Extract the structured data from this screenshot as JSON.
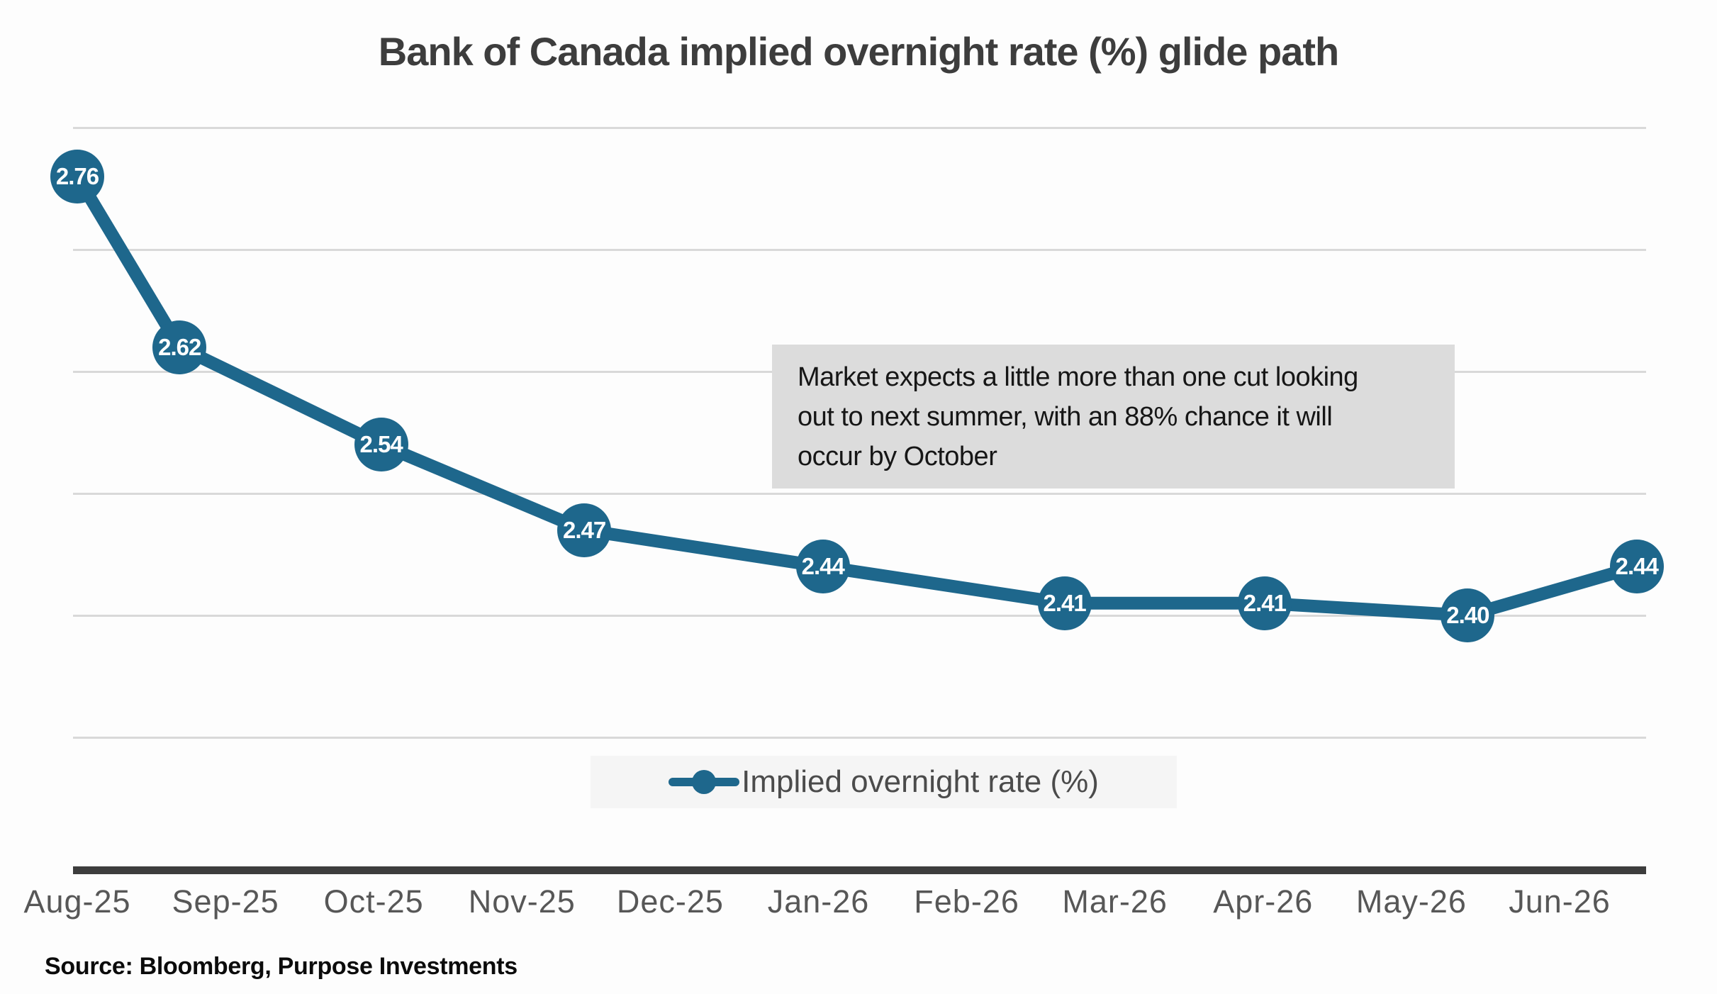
{
  "chart_data": {
    "type": "line",
    "title": "Bank of Canada implied overnight rate (%) glide path",
    "x_tick_labels": [
      "Aug-25",
      "Sep-25",
      "Oct-25",
      "Nov-25",
      "Dec-25",
      "Jan-26",
      "Feb-26",
      "Mar-26",
      "Apr-26",
      "May-26",
      "Jun-26"
    ],
    "y_gridlines": [
      2.8,
      2.7,
      2.6,
      2.5,
      2.4,
      2.3
    ],
    "ylim": [
      2.19,
      2.81
    ],
    "y_axis_labels_visible": false,
    "grid": "horizontal",
    "legend": {
      "label": "Implied overnight rate (%)",
      "position": "bottom-center"
    },
    "series": [
      {
        "name": "Implied overnight rate (%)",
        "points": [
          {
            "x_month": 0.0,
            "value": 2.76,
            "label": "2.76"
          },
          {
            "x_month": 0.69,
            "value": 2.62,
            "label": "2.62"
          },
          {
            "x_month": 2.05,
            "value": 2.54,
            "label": "2.54"
          },
          {
            "x_month": 3.42,
            "value": 2.47,
            "label": "2.47"
          },
          {
            "x_month": 5.03,
            "value": 2.44,
            "label": "2.44"
          },
          {
            "x_month": 6.66,
            "value": 2.41,
            "label": "2.41"
          },
          {
            "x_month": 8.01,
            "value": 2.41,
            "label": "2.41"
          },
          {
            "x_month": 9.38,
            "value": 2.4,
            "label": "2.40"
          },
          {
            "x_month": 10.52,
            "value": 2.44,
            "label": "2.44"
          }
        ]
      }
    ]
  },
  "annotation": {
    "lines": [
      "Market expects a little more than one cut looking",
      "out to next summer, with an 88% chance it will",
      "occur by October"
    ]
  },
  "source_note": "Source: Bloomberg, Purpose Investments",
  "colors": {
    "line": "#1e678c",
    "marker": "#1e678c",
    "marker_text": "#ffffff",
    "gridline": "#d9d9d9",
    "axis_line": "#3d3d3d",
    "title_text": "#3d3d3d",
    "tick_text": "#575757",
    "legend_bg": "#f5f5f5",
    "legend_text": "#4b4b4b",
    "annotation_bg": "#dcdcdc",
    "annotation_text": "#161616",
    "source_text": "#0b0b0b",
    "background": "#fdfdfd"
  }
}
